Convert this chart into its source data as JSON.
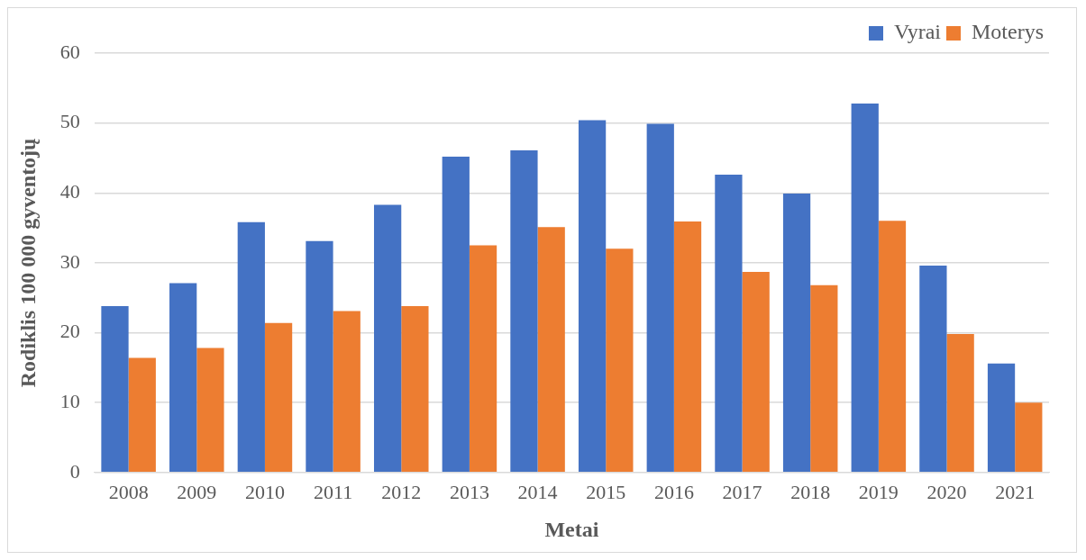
{
  "chart_data": {
    "type": "bar",
    "xlabel": "Metai",
    "ylabel": "Rodiklis 100 000 gyventojų",
    "categories": [
      "2008",
      "2009",
      "2010",
      "2011",
      "2012",
      "2013",
      "2014",
      "2015",
      "2016",
      "2017",
      "2018",
      "2019",
      "2020",
      "2021"
    ],
    "series": [
      {
        "name": "Vyrai",
        "color": "#4472c4",
        "values": [
          23.8,
          27.1,
          35.8,
          33.1,
          38.3,
          45.2,
          46.1,
          50.4,
          49.9,
          42.6,
          39.9,
          52.8,
          29.6,
          15.6
        ]
      },
      {
        "name": "Moterys",
        "color": "#ed7d31",
        "values": [
          16.4,
          17.8,
          21.4,
          23.1,
          23.8,
          32.5,
          35.1,
          32.0,
          35.9,
          28.7,
          26.8,
          36.0,
          19.8,
          10.0
        ]
      }
    ],
    "ylim": [
      0,
      60
    ],
    "yticks": [
      0,
      10,
      20,
      30,
      40,
      50,
      60
    ],
    "grid": "y",
    "legend": "top right"
  }
}
